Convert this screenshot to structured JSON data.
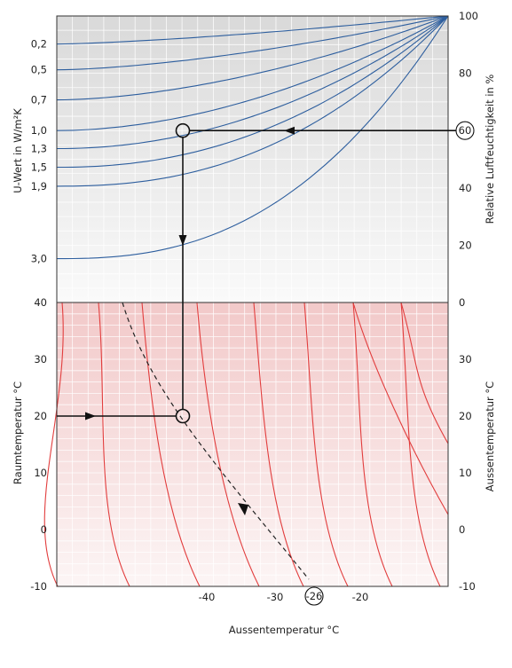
{
  "chart_data": {
    "type": "nomogram",
    "upper_panel": {
      "ylabel_left": "U-Wert in W/m²K",
      "ylabel_right": "Relative Luftfeuchtigkeit in %",
      "u_ticks": [
        {
          "label": "0,2",
          "rh": 90.2
        },
        {
          "label": "0,5",
          "rh": 81.2
        },
        {
          "label": "0,7",
          "rh": 70.7
        },
        {
          "label": "1,0",
          "rh": 60
        },
        {
          "label": "1,3",
          "rh": 53.7
        },
        {
          "label": "1,5",
          "rh": 47.2
        },
        {
          "label": "1,9",
          "rh": 40.6
        },
        {
          "label": "3,0",
          "rh": 15.3
        }
      ],
      "rh_ticks": [
        "100",
        "80",
        "60",
        "40",
        "20"
      ],
      "rh_range": [
        0,
        100
      ],
      "u_curve_color": "#2d5e9e",
      "background_color": "#d9d9d9"
    },
    "lower_panel": {
      "ylabel_left": "Raumtemperatur °C",
      "ylabel_right": "Aussentemperatur °C",
      "xlabel": "Aussentemperatur °C",
      "room_ticks": [
        "40",
        "30",
        "20",
        "10",
        "0",
        "-10"
      ],
      "outside_ticks_right": [
        "0",
        "30",
        "20",
        "10",
        "0",
        "-10"
      ],
      "bottom_ticks": [
        "-40",
        "-30",
        "-20"
      ],
      "room_range": [
        -10,
        40
      ],
      "isotherm_color": "#e23d3d",
      "background_color": "#f2c9c9"
    },
    "example": {
      "rh_label": "60",
      "rh": 60,
      "u_label": "1,0",
      "room_temp": 20,
      "result_label": "-26"
    }
  }
}
